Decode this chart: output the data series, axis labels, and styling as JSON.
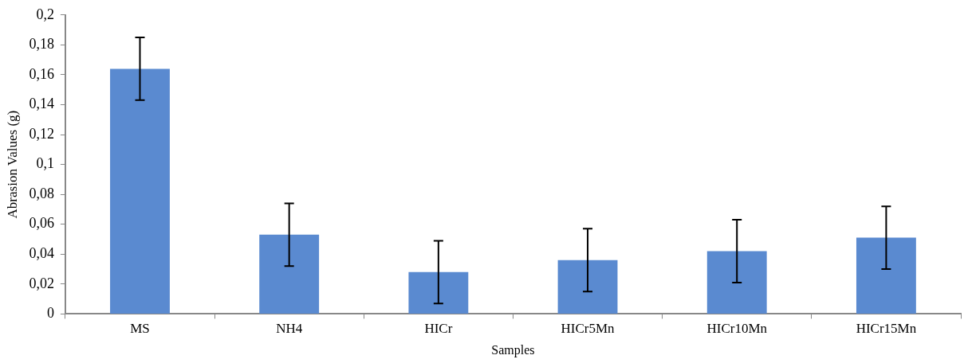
{
  "chart_data": {
    "type": "bar",
    "xlabel": "Samples",
    "ylabel": "Abrasion Values (g)",
    "categories": [
      "MS",
      "NH4",
      "HICr",
      "HICr5Mn",
      "HICr10Mn",
      "HICr15Mn"
    ],
    "series": [
      {
        "color": "#5a8ad0",
        "values": [
          0.164,
          0.053,
          0.028,
          0.036,
          0.042,
          0.051
        ],
        "errors": [
          0.021,
          0.021,
          0.021,
          0.021,
          0.021,
          0.021
        ]
      }
    ],
    "ylim": [
      0,
      0.2
    ],
    "yticks": [
      {
        "value": 0,
        "label": "0"
      },
      {
        "value": 0.02,
        "label": "0,02"
      },
      {
        "value": 0.04,
        "label": "0,04"
      },
      {
        "value": 0.06,
        "label": "0,06"
      },
      {
        "value": 0.08,
        "label": "0,08"
      },
      {
        "value": 0.1,
        "label": "0,1"
      },
      {
        "value": 0.12,
        "label": "0,12"
      },
      {
        "value": 0.14,
        "label": "0,14"
      },
      {
        "value": 0.16,
        "label": "0,16"
      },
      {
        "value": 0.18,
        "label": "0,18"
      },
      {
        "value": 0.2,
        "label": "0,2"
      }
    ],
    "grid": false,
    "legend": false
  }
}
